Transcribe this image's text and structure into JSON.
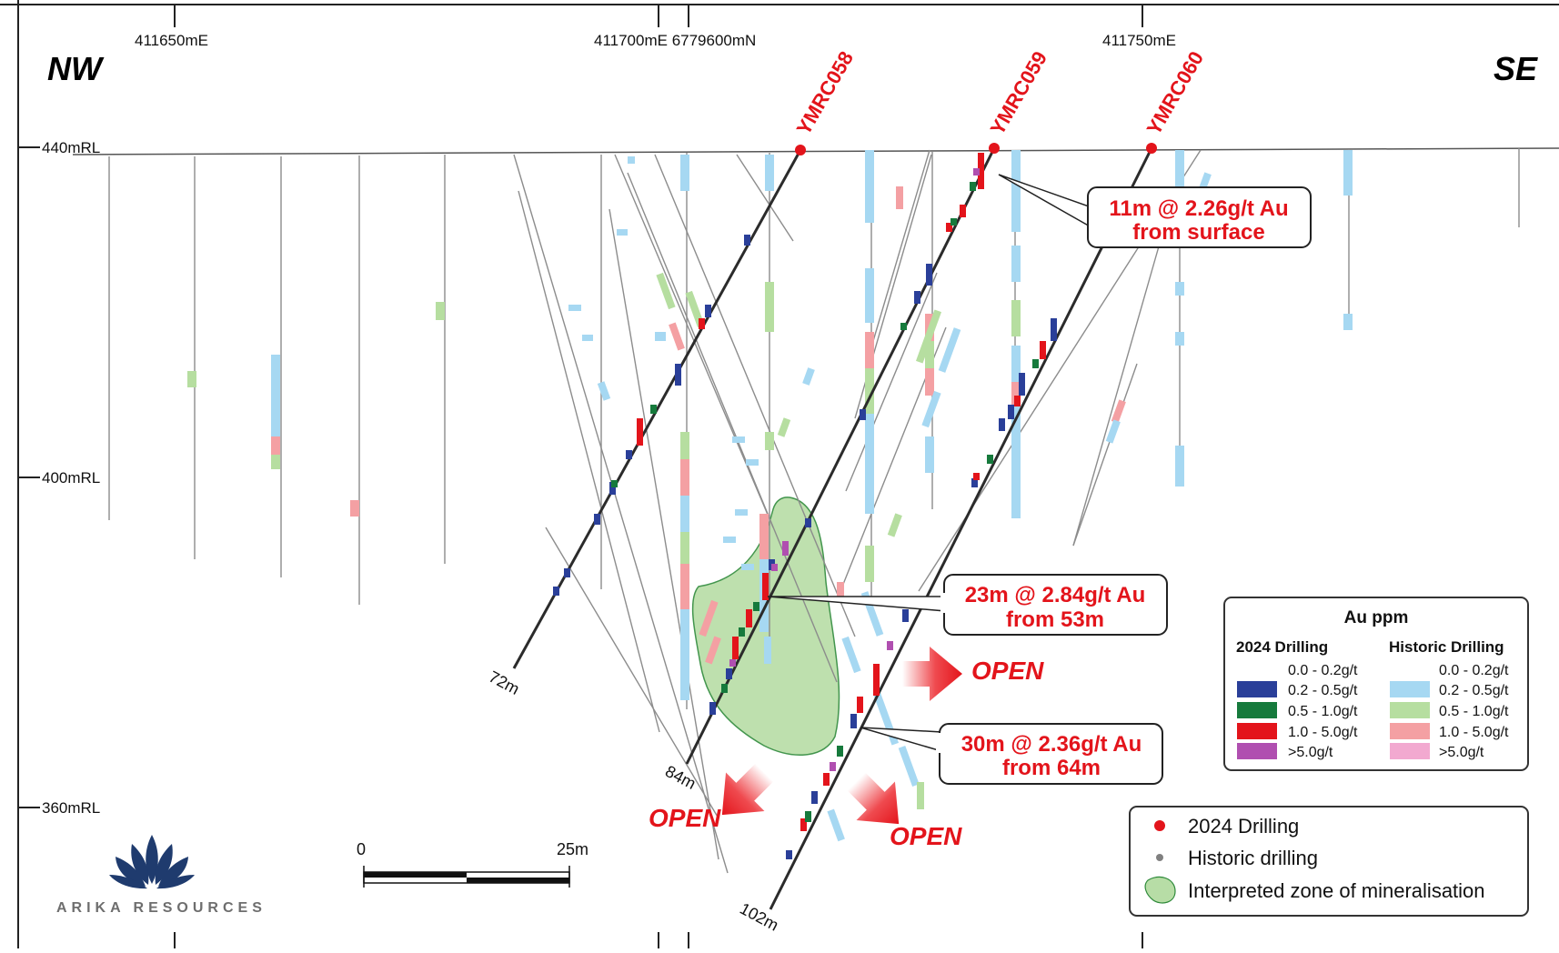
{
  "section": {
    "direction_left": "NW",
    "direction_right": "SE",
    "easting_labels": [
      "411650mE",
      "411700mE 6779600mN",
      "411750mE"
    ],
    "rl_labels": [
      "440mRL",
      "400mRL",
      "360mRL"
    ]
  },
  "holes": [
    {
      "id": "YMRC058",
      "end_depth": "72m"
    },
    {
      "id": "YMRC059",
      "end_depth": "84m"
    },
    {
      "id": "YMRC060",
      "end_depth": "102m"
    }
  ],
  "callouts": [
    {
      "line1": "11m @ 2.26g/t Au",
      "line2": "from surface"
    },
    {
      "line1": "23m @ 2.84g/t Au",
      "line2": "from 53m"
    },
    {
      "line1": "30m @ 2.36g/t Au",
      "line2": "from 64m"
    }
  ],
  "open_labels": [
    "OPEN",
    "OPEN",
    "OPEN"
  ],
  "legend_grade": {
    "title": "Au ppm",
    "col_2024": "2024 Drilling",
    "col_historic": "Historic Drilling",
    "ranges": [
      "0.0 - 0.2g/t",
      "0.2 - 0.5g/t",
      "0.5 - 1.0g/t",
      "1.0 - 5.0g/t",
      ">5.0g/t"
    ],
    "colors_2024": [
      "none",
      "#2a3f99",
      "#167a3c",
      "#e3141b",
      "#b04fb0"
    ],
    "colors_historic": [
      "none",
      "#a6d8f2",
      "#b6dea0",
      "#f4a0a3",
      "#f2a9d0"
    ]
  },
  "legend_symbols": {
    "items": [
      {
        "label": "2024 Drilling",
        "color": "#e3141b"
      },
      {
        "label": "Historic drilling",
        "color": "#808080"
      },
      {
        "label": "Interpreted zone of mineralisation",
        "color": "#b7dda6"
      }
    ]
  },
  "scale_bar": {
    "start": "0",
    "end": "25m"
  },
  "logo": {
    "text": "ARIKA RESOURCES"
  },
  "colors": {
    "accent_red": "#e3141b",
    "mineral_zone": "#b7dda6",
    "hole_2024": "#2b2b2b",
    "hole_historic": "#8c8c8c"
  }
}
